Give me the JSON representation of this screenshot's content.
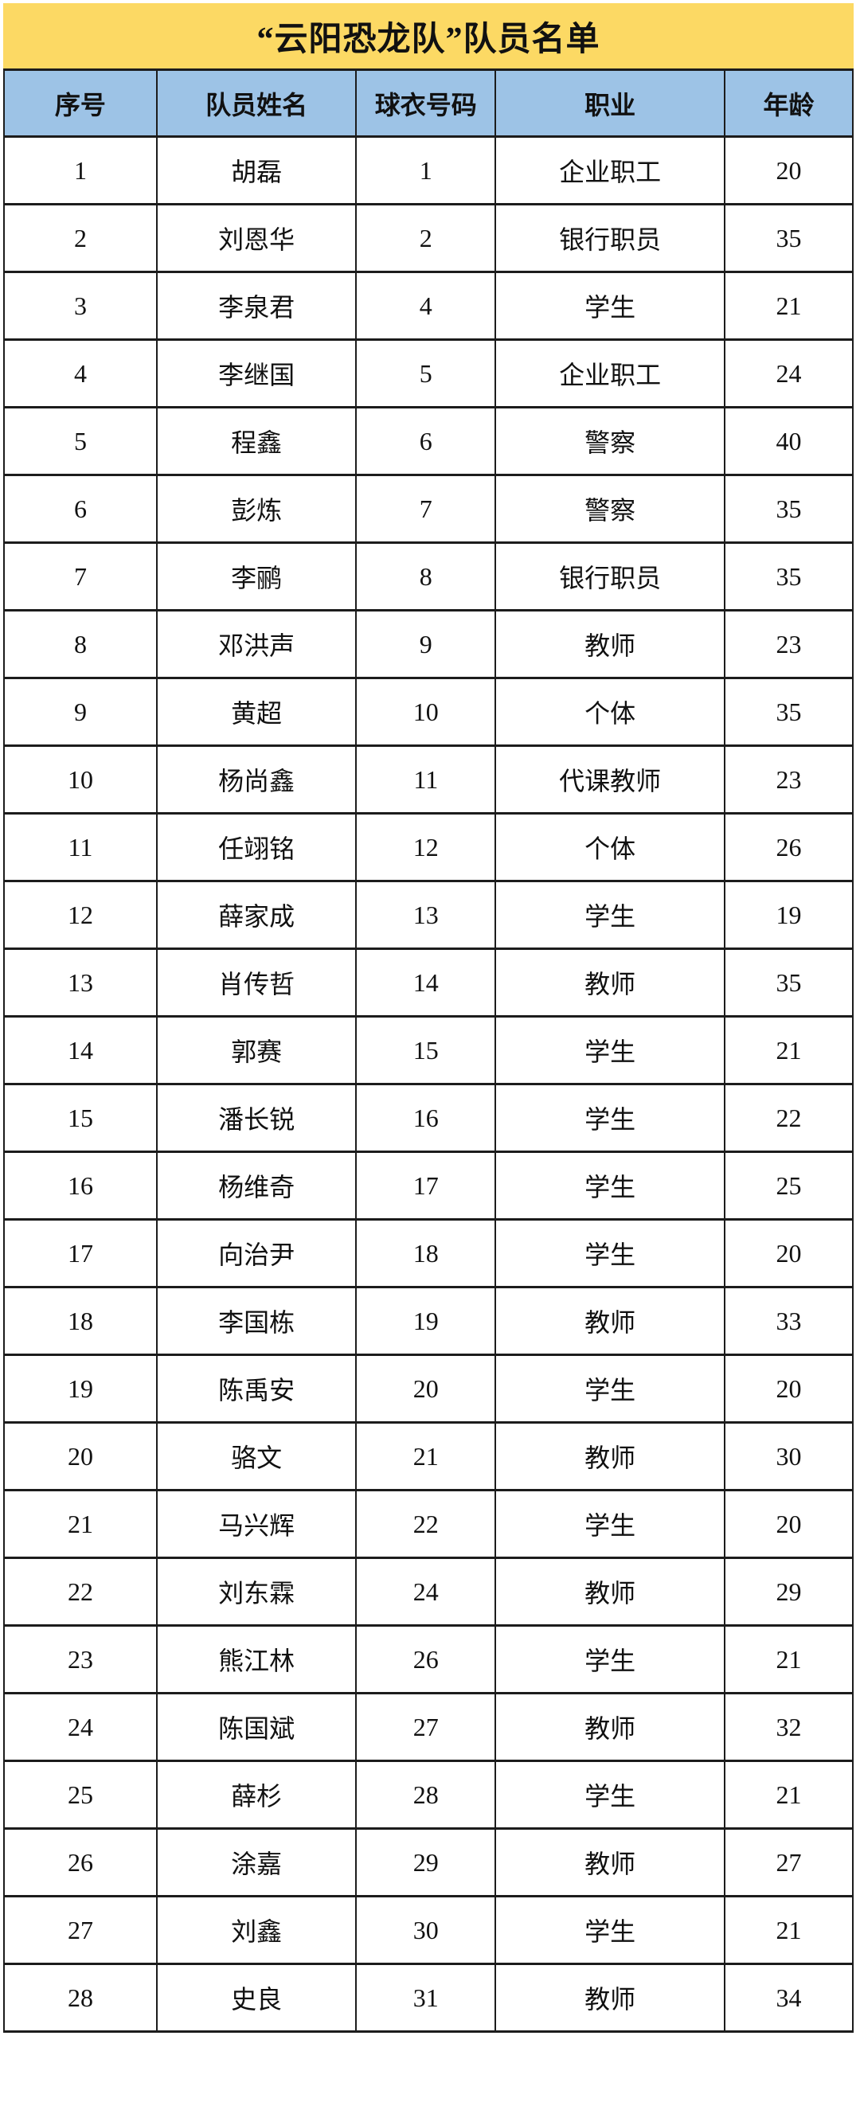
{
  "title": "“云阳恐龙队”队员名单",
  "table": {
    "columns": {
      "no": "序号",
      "name": "队员姓名",
      "jersey": "球衣号码",
      "occupation": "职业",
      "age": "年龄"
    },
    "rows": [
      {
        "no": 1,
        "name": "胡磊",
        "jersey": 1,
        "occupation": "企业职工",
        "age": 20
      },
      {
        "no": 2,
        "name": "刘恩华",
        "jersey": 2,
        "occupation": "银行职员",
        "age": 35
      },
      {
        "no": 3,
        "name": "李泉君",
        "jersey": 4,
        "occupation": "学生",
        "age": 21
      },
      {
        "no": 4,
        "name": "李继国",
        "jersey": 5,
        "occupation": "企业职工",
        "age": 24
      },
      {
        "no": 5,
        "name": "程鑫",
        "jersey": 6,
        "occupation": "警察",
        "age": 40
      },
      {
        "no": 6,
        "name": "彭炼",
        "jersey": 7,
        "occupation": "警察",
        "age": 35
      },
      {
        "no": 7,
        "name": "李鹂",
        "jersey": 8,
        "occupation": "银行职员",
        "age": 35
      },
      {
        "no": 8,
        "name": "邓洪声",
        "jersey": 9,
        "occupation": "教师",
        "age": 23
      },
      {
        "no": 9,
        "name": "黄超",
        "jersey": 10,
        "occupation": "个体",
        "age": 35
      },
      {
        "no": 10,
        "name": "杨尚鑫",
        "jersey": 11,
        "occupation": "代课教师",
        "age": 23
      },
      {
        "no": 11,
        "name": "任翊铭",
        "jersey": 12,
        "occupation": "个体",
        "age": 26
      },
      {
        "no": 12,
        "name": "薛家成",
        "jersey": 13,
        "occupation": "学生",
        "age": 19
      },
      {
        "no": 13,
        "name": "肖传哲",
        "jersey": 14,
        "occupation": "教师",
        "age": 35
      },
      {
        "no": 14,
        "name": "郭赛",
        "jersey": 15,
        "occupation": "学生",
        "age": 21
      },
      {
        "no": 15,
        "name": "潘长锐",
        "jersey": 16,
        "occupation": "学生",
        "age": 22
      },
      {
        "no": 16,
        "name": "杨维奇",
        "jersey": 17,
        "occupation": "学生",
        "age": 25
      },
      {
        "no": 17,
        "name": "向治尹",
        "jersey": 18,
        "occupation": "学生",
        "age": 20
      },
      {
        "no": 18,
        "name": "李国栋",
        "jersey": 19,
        "occupation": "教师",
        "age": 33
      },
      {
        "no": 19,
        "name": "陈禹安",
        "jersey": 20,
        "occupation": "学生",
        "age": 20
      },
      {
        "no": 20,
        "name": "骆文",
        "jersey": 21,
        "occupation": "教师",
        "age": 30
      },
      {
        "no": 21,
        "name": "马兴辉",
        "jersey": 22,
        "occupation": "学生",
        "age": 20
      },
      {
        "no": 22,
        "name": "刘东霖",
        "jersey": 24,
        "occupation": "教师",
        "age": 29
      },
      {
        "no": 23,
        "name": "熊江林",
        "jersey": 26,
        "occupation": "学生",
        "age": 21
      },
      {
        "no": 24,
        "name": "陈国斌",
        "jersey": 27,
        "occupation": "教师",
        "age": 32
      },
      {
        "no": 25,
        "name": "薛杉",
        "jersey": 28,
        "occupation": "学生",
        "age": 21
      },
      {
        "no": 26,
        "name": "涂嘉",
        "jersey": 29,
        "occupation": "教师",
        "age": 27
      },
      {
        "no": 27,
        "name": "刘鑫",
        "jersey": 30,
        "occupation": "学生",
        "age": 21
      },
      {
        "no": 28,
        "name": "史良",
        "jersey": 31,
        "occupation": "教师",
        "age": 34
      }
    ]
  },
  "colors": {
    "title_bg": "#FCD964",
    "header_bg": "#9DC3E6",
    "border": "#1C1C1C",
    "text": "#111111",
    "page_bg": "#FFFFFF"
  }
}
